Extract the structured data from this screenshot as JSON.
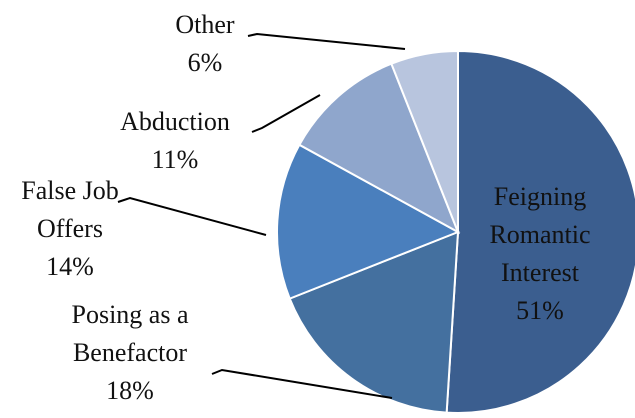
{
  "chart_data": {
    "type": "pie",
    "categories": [
      "Feigning Romantic Interest",
      "Posing as a Benefactor",
      "False Job Offers",
      "Abduction",
      "Other"
    ],
    "values": [
      51,
      18,
      14,
      11,
      6
    ],
    "value_labels": [
      "51%",
      "18%",
      "14%",
      "11%",
      "6%"
    ],
    "colors": [
      "#3b5e8f",
      "#44709f",
      "#4a7fbd",
      "#8fa6cc",
      "#b8c5de"
    ]
  }
}
